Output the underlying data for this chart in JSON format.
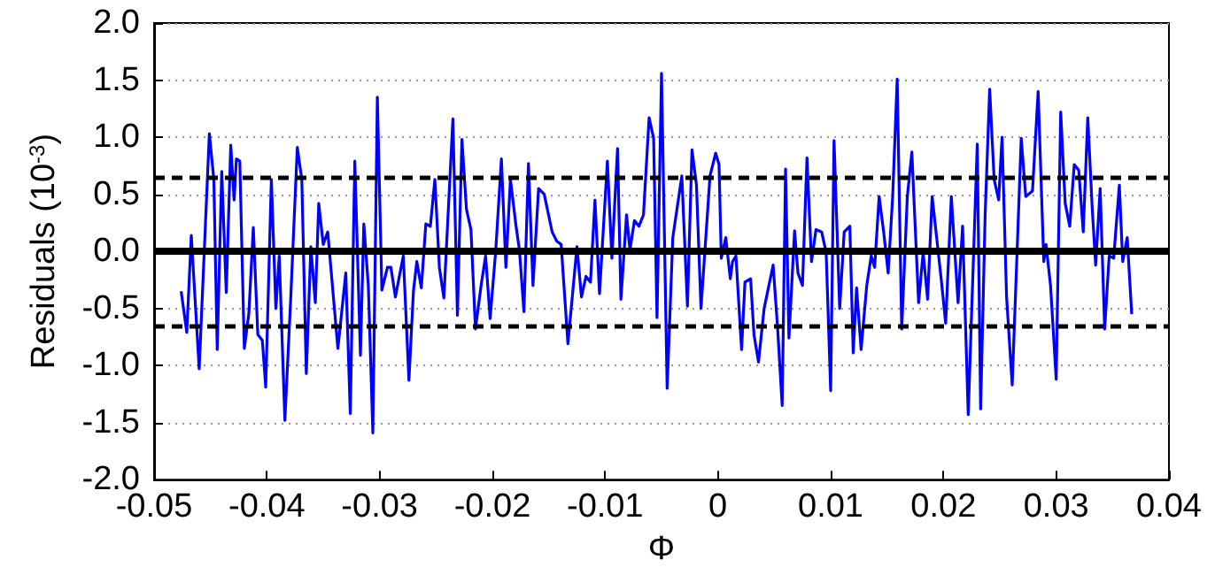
{
  "chart_data": {
    "type": "line",
    "xlabel": "Φ",
    "ylabel": "Residuals (10$^{-3}$)",
    "xlim": [
      -0.05,
      0.04
    ],
    "xticks": [
      -0.05,
      -0.04,
      -0.03,
      -0.02,
      -0.01,
      0,
      0.01,
      0.02,
      0.03,
      0.04
    ],
    "ylim": [
      -2,
      2
    ],
    "yticks": [
      {
        "value": -2,
        "label": "-2.0"
      },
      {
        "value": -1.5,
        "label": "-1.5"
      },
      {
        "value": -1,
        "label": "-1.0"
      },
      {
        "value": -0.5,
        "label": "-0.5"
      },
      {
        "value": 0,
        "label": "0.0"
      },
      {
        "value": 0.5,
        "label": "0.5"
      },
      {
        "value": 1,
        "label": "1.0"
      },
      {
        "value": 1.5,
        "label": "1.5"
      },
      {
        "value": 2,
        "label": "2.0"
      }
    ],
    "grid": "y",
    "marker": "none",
    "line_style": "solid",
    "series": [
      {
        "color": "#0000ff",
        "x": [
          -0.0476,
          -0.0471,
          -0.0467,
          -0.046,
          -0.0451,
          -0.0447,
          -0.0444,
          -0.044,
          -0.0436,
          -0.0432,
          -0.0429,
          -0.0427,
          -0.0424,
          -0.042,
          -0.0416,
          -0.0412,
          -0.0408,
          -0.0404,
          -0.0401,
          -0.0396,
          -0.0392,
          -0.0389,
          -0.0384,
          -0.0379,
          -0.0373,
          -0.0369,
          -0.0365,
          -0.0361,
          -0.0357,
          -0.0354,
          -0.035,
          -0.0346,
          -0.0337,
          -0.033,
          -0.0326,
          -0.0322,
          -0.0317,
          -0.0314,
          -0.031,
          -0.0306,
          -0.0302,
          -0.0298,
          -0.0293,
          -0.029,
          -0.0286,
          -0.0279,
          -0.0274,
          -0.027,
          -0.0267,
          -0.0263,
          -0.0259,
          -0.0255,
          -0.0251,
          -0.0247,
          -0.0243,
          -0.0235,
          -0.0231,
          -0.0227,
          -0.0223,
          -0.0219,
          -0.0215,
          -0.021,
          -0.0206,
          -0.0202,
          -0.0197,
          -0.0192,
          -0.0188,
          -0.0184,
          -0.0179,
          -0.0176,
          -0.0172,
          -0.0168,
          -0.0164,
          -0.0159,
          -0.0154,
          -0.0147,
          -0.0143,
          -0.0139,
          -0.0133,
          -0.0125,
          -0.0121,
          -0.0117,
          -0.0113,
          -0.0109,
          -0.0105,
          -0.0098,
          -0.0094,
          -0.0089,
          -0.0086,
          -0.0081,
          -0.0078,
          -0.0074,
          -0.007,
          -0.0066,
          -0.0061,
          -0.0057,
          -0.0054,
          -0.005,
          -0.0045,
          -0.004,
          -0.0032,
          -0.0027,
          -0.0023,
          -0.0019,
          -0.0015,
          -0.0007,
          -0.0002,
          0.0001,
          0.0003,
          0.0007,
          0.0011,
          0.0013,
          0.0016,
          0.0021,
          0.0024,
          0.0029,
          0.0032,
          0.0036,
          0.0041,
          0.0049,
          0.0053,
          0.0057,
          0.006,
          0.0063,
          0.0068,
          0.0071,
          0.0075,
          0.0079,
          0.0083,
          0.0087,
          0.0092,
          0.0096,
          0.01,
          0.0103,
          0.0108,
          0.0112,
          0.0117,
          0.012,
          0.0123,
          0.0127,
          0.0132,
          0.0136,
          0.0139,
          0.0143,
          0.0147,
          0.0151,
          0.0155,
          0.0159,
          0.0163,
          0.0168,
          0.0172,
          0.0178,
          0.0182,
          0.0186,
          0.019,
          0.0198,
          0.0202,
          0.0207,
          0.0213,
          0.0217,
          0.0222,
          0.023,
          0.0233,
          0.0237,
          0.0241,
          0.0245,
          0.0249,
          0.0252,
          0.0256,
          0.0261,
          0.0269,
          0.0273,
          0.0279,
          0.0284,
          0.0289,
          0.0291,
          0.0295,
          0.03,
          0.0304,
          0.0308,
          0.0312,
          0.0316,
          0.032,
          0.0324,
          0.0328,
          0.0332,
          0.0335,
          0.0339,
          0.0343,
          0.0347,
          0.0351,
          0.0356,
          0.0359,
          0.0363,
          0.0367
        ],
        "values": [
          -0.35,
          -0.71,
          0.14,
          -1.03,
          1.03,
          0.63,
          -0.86,
          0.7,
          -0.36,
          0.93,
          0.45,
          0.81,
          0.79,
          -0.85,
          -0.55,
          0.21,
          -0.73,
          -0.78,
          -1.19,
          0.63,
          -0.5,
          -0.04,
          -1.48,
          -0.45,
          0.91,
          0.63,
          -1.07,
          0.04,
          -0.45,
          0.42,
          0.06,
          0.17,
          -0.85,
          -0.19,
          -1.42,
          0.79,
          -0.91,
          0.24,
          -0.3,
          -1.59,
          1.35,
          -0.34,
          -0.14,
          -0.14,
          -0.4,
          -0.04,
          -1.13,
          -0.35,
          -0.09,
          -0.32,
          0.24,
          0.22,
          0.63,
          -0.14,
          -0.41,
          1.16,
          -0.56,
          0.98,
          0.37,
          0.19,
          -0.68,
          -0.3,
          -0.04,
          -0.59,
          0.01,
          0.81,
          -0.14,
          0.63,
          0.22,
          0.01,
          -0.53,
          0.77,
          -0.3,
          0.55,
          0.5,
          0.17,
          0.09,
          0.06,
          -0.81,
          0.04,
          -0.4,
          -0.22,
          -0.27,
          0.45,
          -0.37,
          0.79,
          -0.06,
          0.9,
          -0.42,
          0.32,
          0.01,
          0.27,
          0.22,
          0.32,
          1.17,
          0.99,
          -0.58,
          1.56,
          -1.2,
          0.12,
          0.66,
          -0.48,
          0.89,
          0.58,
          -0.5,
          0.66,
          0.86,
          0.76,
          -0.06,
          0.12,
          -0.24,
          -0.09,
          -0.04,
          -0.86,
          -0.27,
          -0.24,
          -0.73,
          -0.97,
          -0.5,
          -0.12,
          -0.68,
          -1.35,
          0.72,
          -0.76,
          0.18,
          -0.19,
          -0.3,
          0.82,
          -0.09,
          0.19,
          0.17,
          -0.01,
          -1.22,
          0.97,
          -0.5,
          0.17,
          0.22,
          -0.89,
          -0.32,
          -0.86,
          -0.3,
          -0.04,
          -0.14,
          0.48,
          0.17,
          -0.19,
          0.48,
          1.51,
          -0.68,
          0.48,
          0.87,
          -0.45,
          -0.01,
          -0.42,
          0.48,
          -0.24,
          -0.63,
          0.48,
          -0.45,
          0.22,
          -1.43,
          0.94,
          -1.38,
          0.32,
          1.42,
          0.63,
          0.45,
          1.0,
          -0.4,
          -1.17,
          0.99,
          0.48,
          0.53,
          1.4,
          -0.09,
          0.06,
          -0.3,
          -1.12,
          1.22,
          0.42,
          0.22,
          0.76,
          0.71,
          0.17,
          1.17,
          0.37,
          -0.12,
          0.55,
          -0.68,
          -0.04,
          -0.06,
          0.58,
          -0.09,
          0.12,
          -0.55
        ]
      }
    ],
    "ref_lines": [
      {
        "axis": "y",
        "value": 0,
        "color": "#000000",
        "line_style": "solid"
      },
      {
        "axis": "y",
        "value": 0.65,
        "color": "#000000",
        "line_style": "dashed"
      },
      {
        "axis": "y",
        "value": -0.65,
        "color": "#000000",
        "line_style": "dashed"
      }
    ]
  }
}
